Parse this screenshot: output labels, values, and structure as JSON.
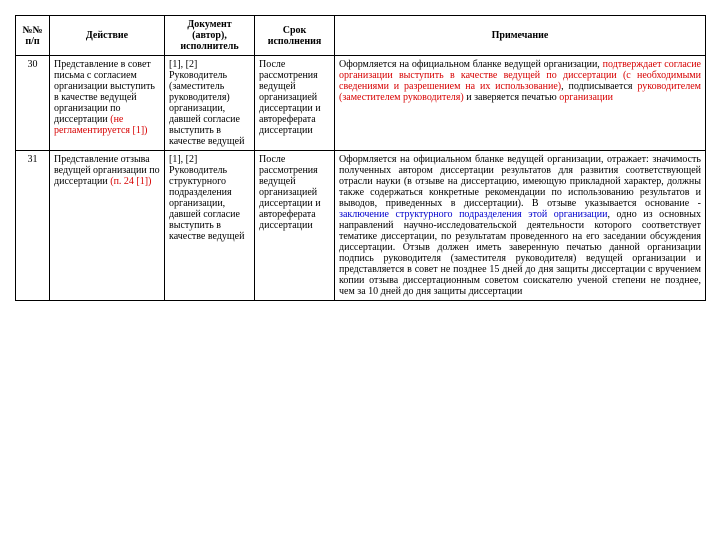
{
  "colors": {
    "text": "#000000",
    "red": "#d60000",
    "blue": "#0000cc",
    "border": "#000000",
    "background": "#ffffff"
  },
  "header": {
    "num": "№№ п/п",
    "action": "Действие",
    "doc": "Документ (автор), исполнитель",
    "time": "Срок исполнения",
    "note": "Примечание"
  },
  "rows": [
    {
      "num": "30",
      "action_pre": "Представление в совет письма с согласием организации выступить в качестве ведущей организации по диссертации",
      "action_red": "(не регламентируется [1])",
      "doc_pre": "[1], [2] Руководитель (заместитель руководителя) организации, давшей согласие выступить в качестве ведущей",
      "time_pre": "После рассмотрения ведущей организацией диссертации и автореферата диссертации",
      "note_a": "Оформляется на официальном бланке ведущей организации, ",
      "note_b": "подтверждает согласие организации выступить в качестве ведущей по диссертации (с необходимыми сведениями и разрешением на их использование)",
      "note_c": ", подписывается ",
      "note_d": "руководителем (заместителем руководителя)",
      "note_e": " и заверяется печатью ",
      "note_f": "организации"
    },
    {
      "num": "31",
      "action_pre": "Представление отзыва ведущей организации по диссертации ",
      "action_red": "(п. 24 [1])",
      "doc_pre": "[1], [2] Руководитель структурного подразделения организации, давшей согласие выступить в качестве ведущей",
      "time_pre": "После рассмотрения ведущей организацией диссертации и автореферата диссертации",
      "note_a": "Оформляется на официальном бланке ведущей организации, отражает: значимость полученных автором диссертации результатов для развития соответствующей отрасли науки (в отзыве на диссертацию, имеющую прикладной характер, должны также содержаться конкретные рекомендации по использованию результатов и выводов, приведенных в диссертации). В отзыве указывается основание - ",
      "note_blue": "заключение структурного подразделения этой организации",
      "note_c": ", одно из основных направлений научно-исследовательской деятельности которого соответствует тематике диссертации, по результатам проведенного на его заседании обсуждения диссертации. Отзыв должен иметь заверенную печатью данной организации подпись руководителя (заместителя руководителя) ведущей организации и представляется в совет не позднее 15 дней до дня защиты диссертации с вручением копии отзыва диссертационным советом соискателю ученой степени не позднее, чем за 10 дней до дня защиты диссертации"
    }
  ]
}
